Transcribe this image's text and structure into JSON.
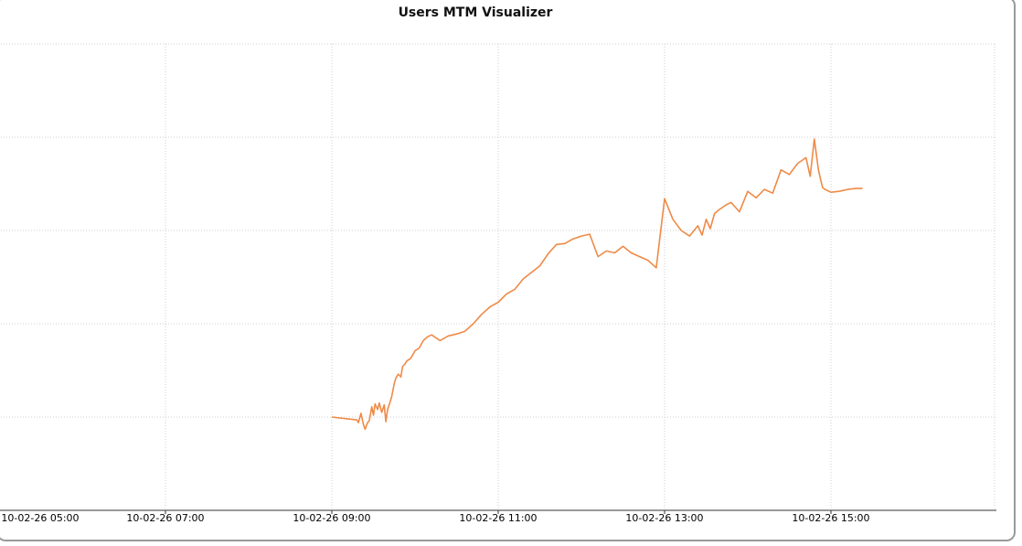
{
  "chart_data": {
    "type": "line",
    "title": "Users MTM Visualizer",
    "xlabel": "",
    "ylabel": "",
    "x_tick_labels": [
      "10-02-26 05:00",
      "10-02-26 07:00",
      "10-02-26 09:00",
      "10-02-26 11:00",
      "10-02-26 13:00",
      "10-02-26 15:00"
    ],
    "x_tick_hours": [
      5,
      7,
      9,
      11,
      13,
      15
    ],
    "y_tick_labels": [],
    "xlim": [
      5,
      17
    ],
    "ylim": [
      0,
      5
    ],
    "grid": true,
    "legend": "none",
    "series": [
      {
        "color": "#ef8a47",
        "x": [
          9.0,
          9.3,
          9.32,
          9.35,
          9.38,
          9.4,
          9.43,
          9.45,
          9.48,
          9.5,
          9.52,
          9.55,
          9.57,
          9.6,
          9.63,
          9.65,
          9.67,
          9.7,
          9.72,
          9.75,
          9.77,
          9.8,
          9.83,
          9.85,
          9.88,
          9.9,
          9.95,
          10.0,
          10.05,
          10.1,
          10.15,
          10.2,
          10.3,
          10.4,
          10.5,
          10.6,
          10.7,
          10.8,
          10.9,
          11.0,
          11.1,
          11.2,
          11.3,
          11.4,
          11.5,
          11.6,
          11.7,
          11.8,
          11.9,
          12.0,
          12.1,
          12.2,
          12.3,
          12.4,
          12.5,
          12.6,
          12.7,
          12.8,
          12.9,
          13.0,
          13.1,
          13.2,
          13.3,
          13.4,
          13.45,
          13.5,
          13.55,
          13.6,
          13.65,
          13.7,
          13.75,
          13.8,
          13.9,
          14.0,
          14.1,
          14.2,
          14.3,
          14.4,
          14.5,
          14.6,
          14.7,
          14.75,
          14.8,
          14.85,
          14.88,
          14.9,
          14.93,
          15.0,
          15.1,
          15.2,
          15.3,
          15.38
        ],
        "y": [
          1.0,
          0.97,
          0.94,
          1.04,
          0.92,
          0.87,
          0.94,
          0.96,
          1.11,
          1.02,
          1.14,
          1.08,
          1.15,
          1.05,
          1.13,
          0.95,
          1.08,
          1.16,
          1.22,
          1.36,
          1.42,
          1.46,
          1.43,
          1.54,
          1.57,
          1.6,
          1.63,
          1.71,
          1.74,
          1.82,
          1.86,
          1.88,
          1.82,
          1.87,
          1.89,
          1.92,
          2.0,
          2.1,
          2.18,
          2.23,
          2.32,
          2.37,
          2.48,
          2.55,
          2.62,
          2.75,
          2.85,
          2.86,
          2.91,
          2.94,
          2.96,
          2.72,
          2.78,
          2.76,
          2.83,
          2.76,
          2.72,
          2.68,
          2.6,
          3.34,
          3.12,
          3.0,
          2.94,
          3.05,
          2.95,
          3.12,
          3.02,
          3.18,
          3.22,
          3.25,
          3.28,
          3.3,
          3.2,
          3.42,
          3.35,
          3.44,
          3.4,
          3.65,
          3.6,
          3.72,
          3.78,
          3.58,
          3.98,
          3.65,
          3.53,
          3.46,
          3.44,
          3.41,
          3.42,
          3.44,
          3.45,
          3.45
        ]
      }
    ]
  }
}
